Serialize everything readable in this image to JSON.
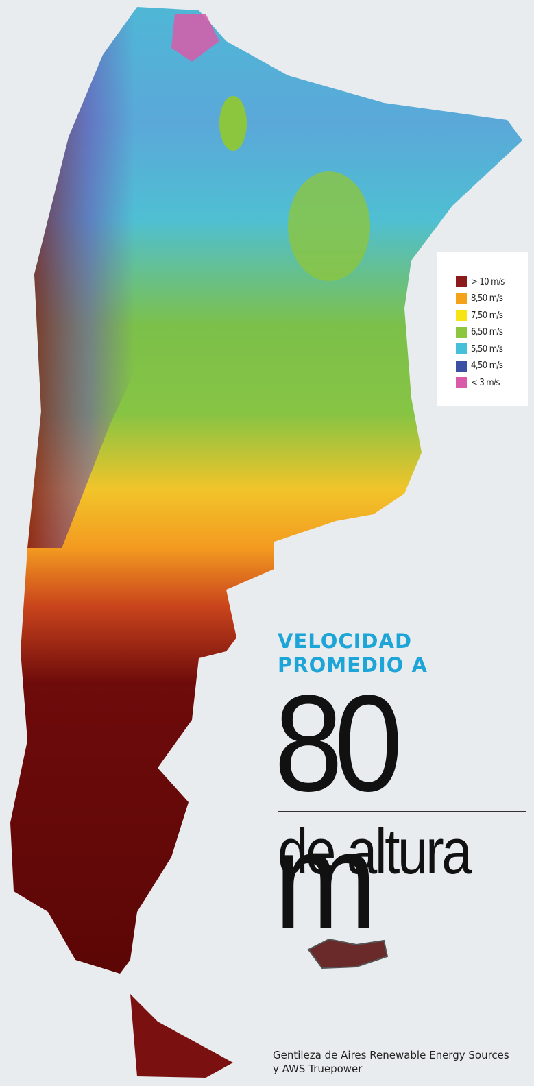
{
  "legend": {
    "items": [
      {
        "label": "> 10 m/s",
        "color": "#8b1a1a"
      },
      {
        "label": "8,50 m/s",
        "color": "#f5a21b"
      },
      {
        "label": "7,50 m/s",
        "color": "#f7e414"
      },
      {
        "label": "6,50 m/s",
        "color": "#8cc63f"
      },
      {
        "label": "5,50 m/s",
        "color": "#45c0d8"
      },
      {
        "label": "4,50 m/s",
        "color": "#3b4fa3"
      },
      {
        "label": "< 3 m/s",
        "color": "#d85aa8"
      }
    ]
  },
  "heading": {
    "kicker": [
      "VELOCIDAD",
      "PROMEDIO A"
    ],
    "value": "80 m",
    "suffix": "de altura"
  },
  "credit": [
    "Gentileza de Aires Renewable Energy Sources",
    "y AWS Truepower"
  ]
}
